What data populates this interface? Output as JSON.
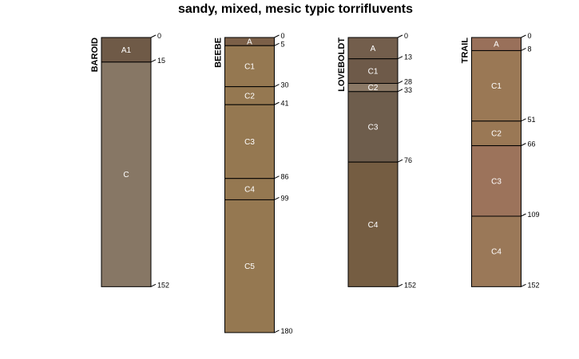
{
  "chart_data": {
    "type": "soil-profile",
    "title": "sandy, mixed, mesic typic torrifluvents",
    "depth_unit": "cm",
    "profiles": [
      {
        "name": "BAROID",
        "horizons": [
          {
            "name": "A1",
            "top": 0,
            "bottom": 15,
            "color": "#6f5a47"
          },
          {
            "name": "C",
            "top": 15,
            "bottom": 152,
            "color": "#877765"
          }
        ]
      },
      {
        "name": "BEEBE",
        "horizons": [
          {
            "name": "A",
            "top": 0,
            "bottom": 5,
            "color": "#7c6048"
          },
          {
            "name": "C1",
            "top": 5,
            "bottom": 30,
            "color": "#957851"
          },
          {
            "name": "C2",
            "top": 30,
            "bottom": 41,
            "color": "#957851"
          },
          {
            "name": "C3",
            "top": 41,
            "bottom": 86,
            "color": "#957851"
          },
          {
            "name": "C4",
            "top": 86,
            "bottom": 99,
            "color": "#957851"
          },
          {
            "name": "C5",
            "top": 99,
            "bottom": 180,
            "color": "#957851"
          }
        ]
      },
      {
        "name": "LOVEBOLDT",
        "horizons": [
          {
            "name": "A",
            "top": 0,
            "bottom": 13,
            "color": "#735e4c"
          },
          {
            "name": "C1",
            "top": 13,
            "bottom": 28,
            "color": "#6e5a49"
          },
          {
            "name": "C2",
            "top": 28,
            "bottom": 33,
            "color": "#8b7966"
          },
          {
            "name": "C3",
            "top": 33,
            "bottom": 76,
            "color": "#6e5d4c"
          },
          {
            "name": "C4",
            "top": 76,
            "bottom": 152,
            "color": "#755d42"
          }
        ]
      },
      {
        "name": "TRAIL",
        "horizons": [
          {
            "name": "A",
            "top": 0,
            "bottom": 8,
            "color": "#99705a"
          },
          {
            "name": "C1",
            "top": 8,
            "bottom": 51,
            "color": "#9a7855"
          },
          {
            "name": "C2",
            "top": 51,
            "bottom": 66,
            "color": "#9a7855"
          },
          {
            "name": "C3",
            "top": 66,
            "bottom": 109,
            "color": "#9c735b"
          },
          {
            "name": "C4",
            "top": 109,
            "bottom": 152,
            "color": "#9a7858"
          }
        ]
      }
    ]
  }
}
